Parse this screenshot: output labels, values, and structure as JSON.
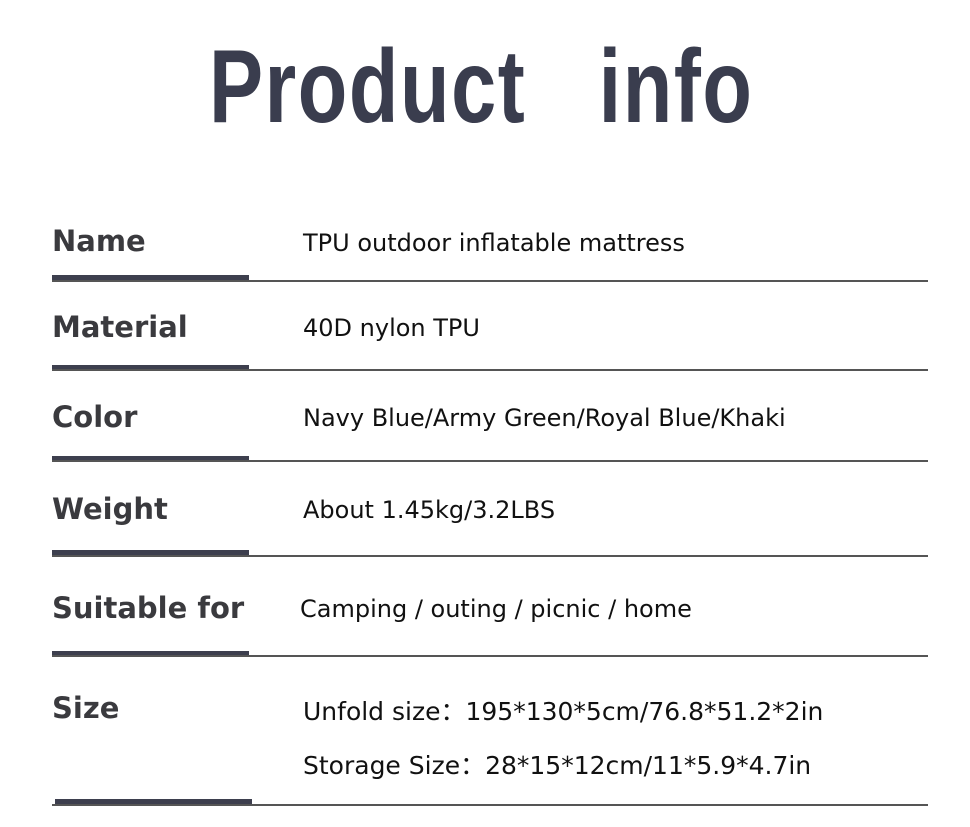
{
  "title": "Product   info",
  "rows": [
    {
      "label": "Name",
      "value": "TPU outdoor inflatable mattress"
    },
    {
      "label": "Material",
      "value": "40D nylon TPU"
    },
    {
      "label": "Color",
      "value": "Navy Blue/Army Green/Royal Blue/Khaki"
    },
    {
      "label": "Weight",
      "value": "About 1.45kg/3.2LBS"
    },
    {
      "label": "Suitable for",
      "value": "Camping / outing / picnic / home"
    },
    {
      "label": "Size",
      "value": "Unfold size：195*130*5cm/76.8*51.2*2in",
      "value2": "Storage Size：28*15*12cm/11*5.9*4.7in"
    }
  ],
  "colors": {
    "title": "#3a3d4e",
    "divider": "#3d3f4e"
  }
}
